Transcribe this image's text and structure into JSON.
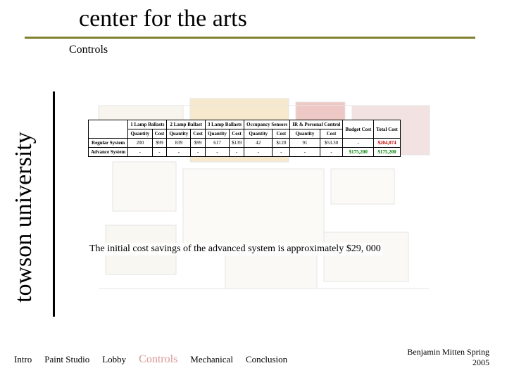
{
  "title": "center for the arts",
  "side_label": "towson university",
  "section": "Controls",
  "table": {
    "group_headers": [
      "1 Lamp Ballasts",
      "2 Lamp Ballast",
      "3 Lamp Ballasts",
      "Occupancy Sensors",
      "IR & Personal Control"
    ],
    "single_headers": [
      "Budget Cost",
      "Total Cost"
    ],
    "sub_headers": [
      "Quantity",
      "Cost"
    ],
    "rows": [
      {
        "label": "Regular System",
        "cells": [
          "200",
          "$99",
          "839",
          "$99",
          "617",
          "$139",
          "42",
          "$120",
          "91",
          "$53.30"
        ],
        "budget": "-",
        "total": "$204,074",
        "total_class": "highlight-red"
      },
      {
        "label": "Advance System",
        "cells": [
          "-",
          "-",
          "-",
          "-",
          "-",
          "-",
          "-",
          "-",
          "-",
          "-"
        ],
        "budget": "$175,200",
        "budget_class": "highlight-green",
        "total": "$175,200",
        "total_class": "highlight-green"
      }
    ]
  },
  "summary_text": "The initial cost savings of the advanced system is approximately $29, 000",
  "nav": {
    "items": [
      "Intro",
      "Paint Studio",
      "Lobby",
      "Controls",
      "Mechanical",
      "Conclusion"
    ],
    "active_index": 3
  },
  "credit_line1": "Benjamin Mitten Spring",
  "credit_line2": "2005",
  "colors": {
    "divider": "#808030",
    "active_nav": "#d99694",
    "red": "#c00000",
    "green": "#008000"
  }
}
